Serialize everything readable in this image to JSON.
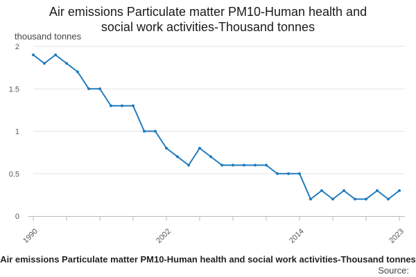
{
  "chart_data": {
    "type": "line",
    "title": "Air emissions Particulate matter PM10-Human health and social work activities-Thousand tonnes",
    "ylabel": "thousand tonnes",
    "xlabel": "",
    "ylim": [
      0,
      2
    ],
    "yticks": [
      0,
      0.5,
      1,
      1.5,
      2
    ],
    "ytick_labels": [
      "0",
      "0.5",
      "1",
      "1.5",
      "2"
    ],
    "xlim": [
      1990,
      2023
    ],
    "x_tick_labels": [
      "1990",
      "2002",
      "2014",
      "2023"
    ],
    "grid": true,
    "series": [
      {
        "name": "Air emissions Particulate matter PM10-Human health and social work activities-Thousand tonnes",
        "color": "#1f7bbd",
        "x": [
          1990,
          1991,
          1992,
          1993,
          1994,
          1995,
          1996,
          1997,
          1998,
          1999,
          2000,
          2001,
          2002,
          2003,
          2004,
          2005,
          2006,
          2007,
          2008,
          2009,
          2010,
          2011,
          2012,
          2013,
          2014,
          2015,
          2016,
          2017,
          2018,
          2019,
          2020,
          2021,
          2022,
          2023
        ],
        "values": [
          1.9,
          1.8,
          1.9,
          1.8,
          1.7,
          1.5,
          1.5,
          1.3,
          1.3,
          1.3,
          1.0,
          1.0,
          0.8,
          0.7,
          0.6,
          0.8,
          0.7,
          0.6,
          0.6,
          0.6,
          0.6,
          0.6,
          0.5,
          0.5,
          0.5,
          0.2,
          0.3,
          0.2,
          0.3,
          0.2,
          0.2,
          0.3,
          0.2,
          0.3
        ]
      }
    ]
  },
  "footer": {
    "chart_title": "Air emissions Particulate matter PM10-Human health and social work activities-Thousand tonnes",
    "source_label": "Source:"
  }
}
